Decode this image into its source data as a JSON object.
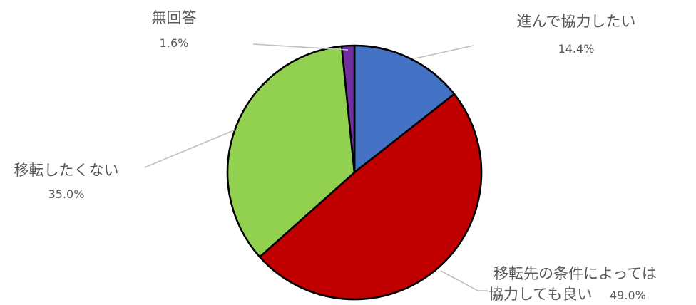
{
  "chart_data": {
    "type": "pie",
    "title": "",
    "legend": "none",
    "slices": [
      {
        "name": "進んで協力したい",
        "value": 14.4,
        "value_label": "14.4%",
        "color": "#4472C4"
      },
      {
        "name": "移転先の条件によっては",
        "name_line2": "協力しても良い",
        "value": 49.0,
        "value_label": "49.0%",
        "color": "#C00000"
      },
      {
        "name": "移転したくない",
        "value": 35.0,
        "value_label": "35.0%",
        "color": "#92D050"
      },
      {
        "name": "無回答",
        "value": 1.6,
        "value_label": "1.6%",
        "color": "#7030A0"
      }
    ]
  }
}
